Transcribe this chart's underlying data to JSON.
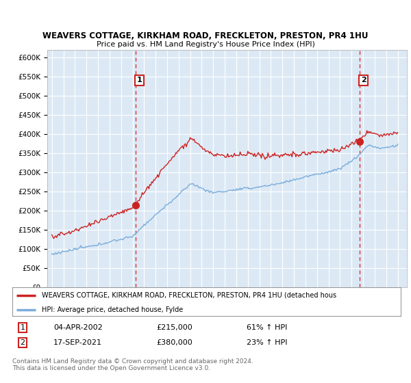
{
  "title": "WEAVERS COTTAGE, KIRKHAM ROAD, FRECKLETON, PRESTON, PR4 1HU",
  "subtitle": "Price paid vs. HM Land Registry's House Price Index (HPI)",
  "legend_line1": "WEAVERS COTTAGE, KIRKHAM ROAD, FRECKLETON, PRESTON, PR4 1HU (detached hous",
  "legend_line2": "HPI: Average price, detached house, Fylde",
  "annotation1": {
    "label": "1",
    "date": "04-APR-2002",
    "price": "£215,000",
    "note": "61% ↑ HPI"
  },
  "annotation2": {
    "label": "2",
    "date": "17-SEP-2021",
    "price": "£380,000",
    "note": "23% ↑ HPI"
  },
  "footer": "Contains HM Land Registry data © Crown copyright and database right 2024.\nThis data is licensed under the Open Government Licence v3.0.",
  "hpi_color": "#7aaddb",
  "price_color": "#cc2222",
  "vline_color": "#dd3333",
  "bg_color": "#dce9f5",
  "panel_bg": "#ffffff",
  "ylim": [
    0,
    600000
  ],
  "ytick_vals": [
    0,
    50000,
    100000,
    150000,
    200000,
    250000,
    300000,
    350000,
    400000,
    450000,
    500000,
    550000,
    600000
  ],
  "ytick_labels": [
    "£0",
    "£50K",
    "£100K",
    "£150K",
    "£200K",
    "£250K",
    "£300K",
    "£350K",
    "£400K",
    "£450K",
    "£500K",
    "£550K",
    "£600K"
  ],
  "xmin": 1995,
  "xmax": 2025,
  "sale1_x": 2002.27,
  "sale1_y": 215000,
  "sale2_x": 2021.71,
  "sale2_y": 380000
}
